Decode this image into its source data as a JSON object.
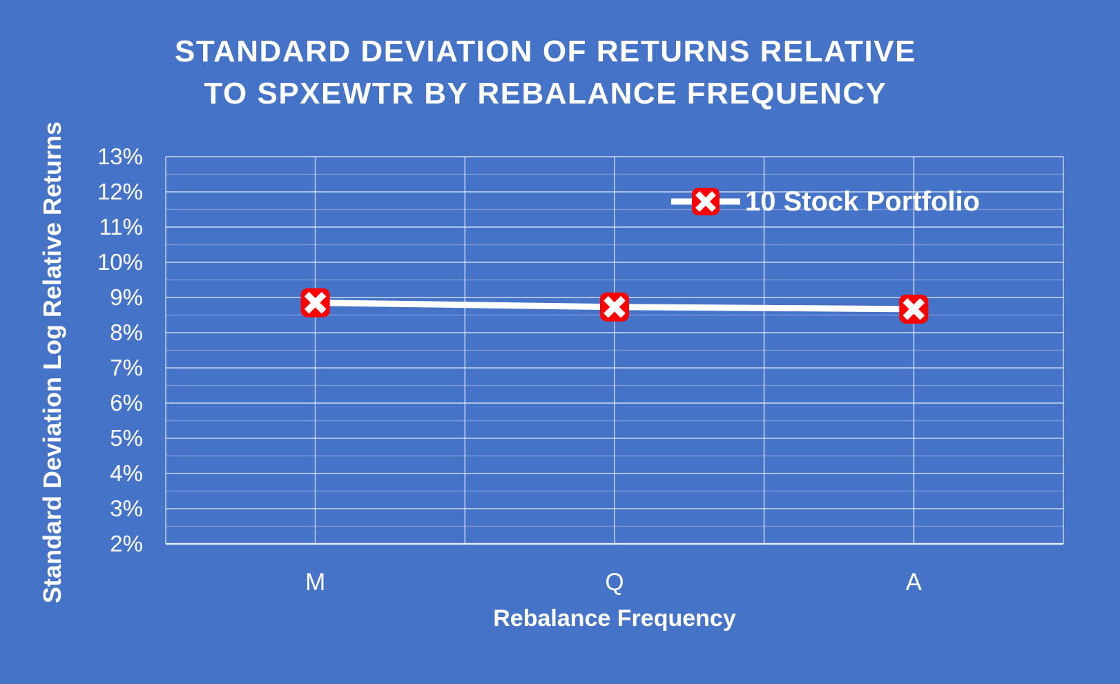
{
  "chart_data": {
    "type": "line",
    "title": "STANDARD DEVIATION OF RETURNS RELATIVE TO SPXEWTR BY REBALANCE FREQUENCY",
    "title_lines": [
      "STANDARD DEVIATION OF RETURNS RELATIVE",
      "TO SPXEWTR BY REBALANCE FREQUENCY"
    ],
    "xlabel": "Rebalance Frequency",
    "ylabel": "Standard Deviation Log Relative Returns",
    "categories": [
      "M",
      "Q",
      "A"
    ],
    "series": [
      {
        "name": "10 Stock Portfolio",
        "values": [
          8.85,
          8.73,
          8.67
        ],
        "unit": "%"
      }
    ],
    "ylim": [
      2,
      13
    ],
    "ytick_step": 1,
    "minor_gridline_step": 0.5,
    "yticks": [
      "13%",
      "12%",
      "11%",
      "10%",
      "9%",
      "8%",
      "7%",
      "6%",
      "5%",
      "4%",
      "3%",
      "2%"
    ],
    "grid": true,
    "legend_position": "inside-top-right",
    "marker_style": "white-x-in-red-rounded-square",
    "colors": {
      "background": "#4573C7",
      "text": "#FFFFFF",
      "series_line": "#FFFFFF",
      "marker_fill": "#FF0000",
      "marker_cross": "#FFFFFF",
      "gridline": "#FFFFFF"
    }
  }
}
